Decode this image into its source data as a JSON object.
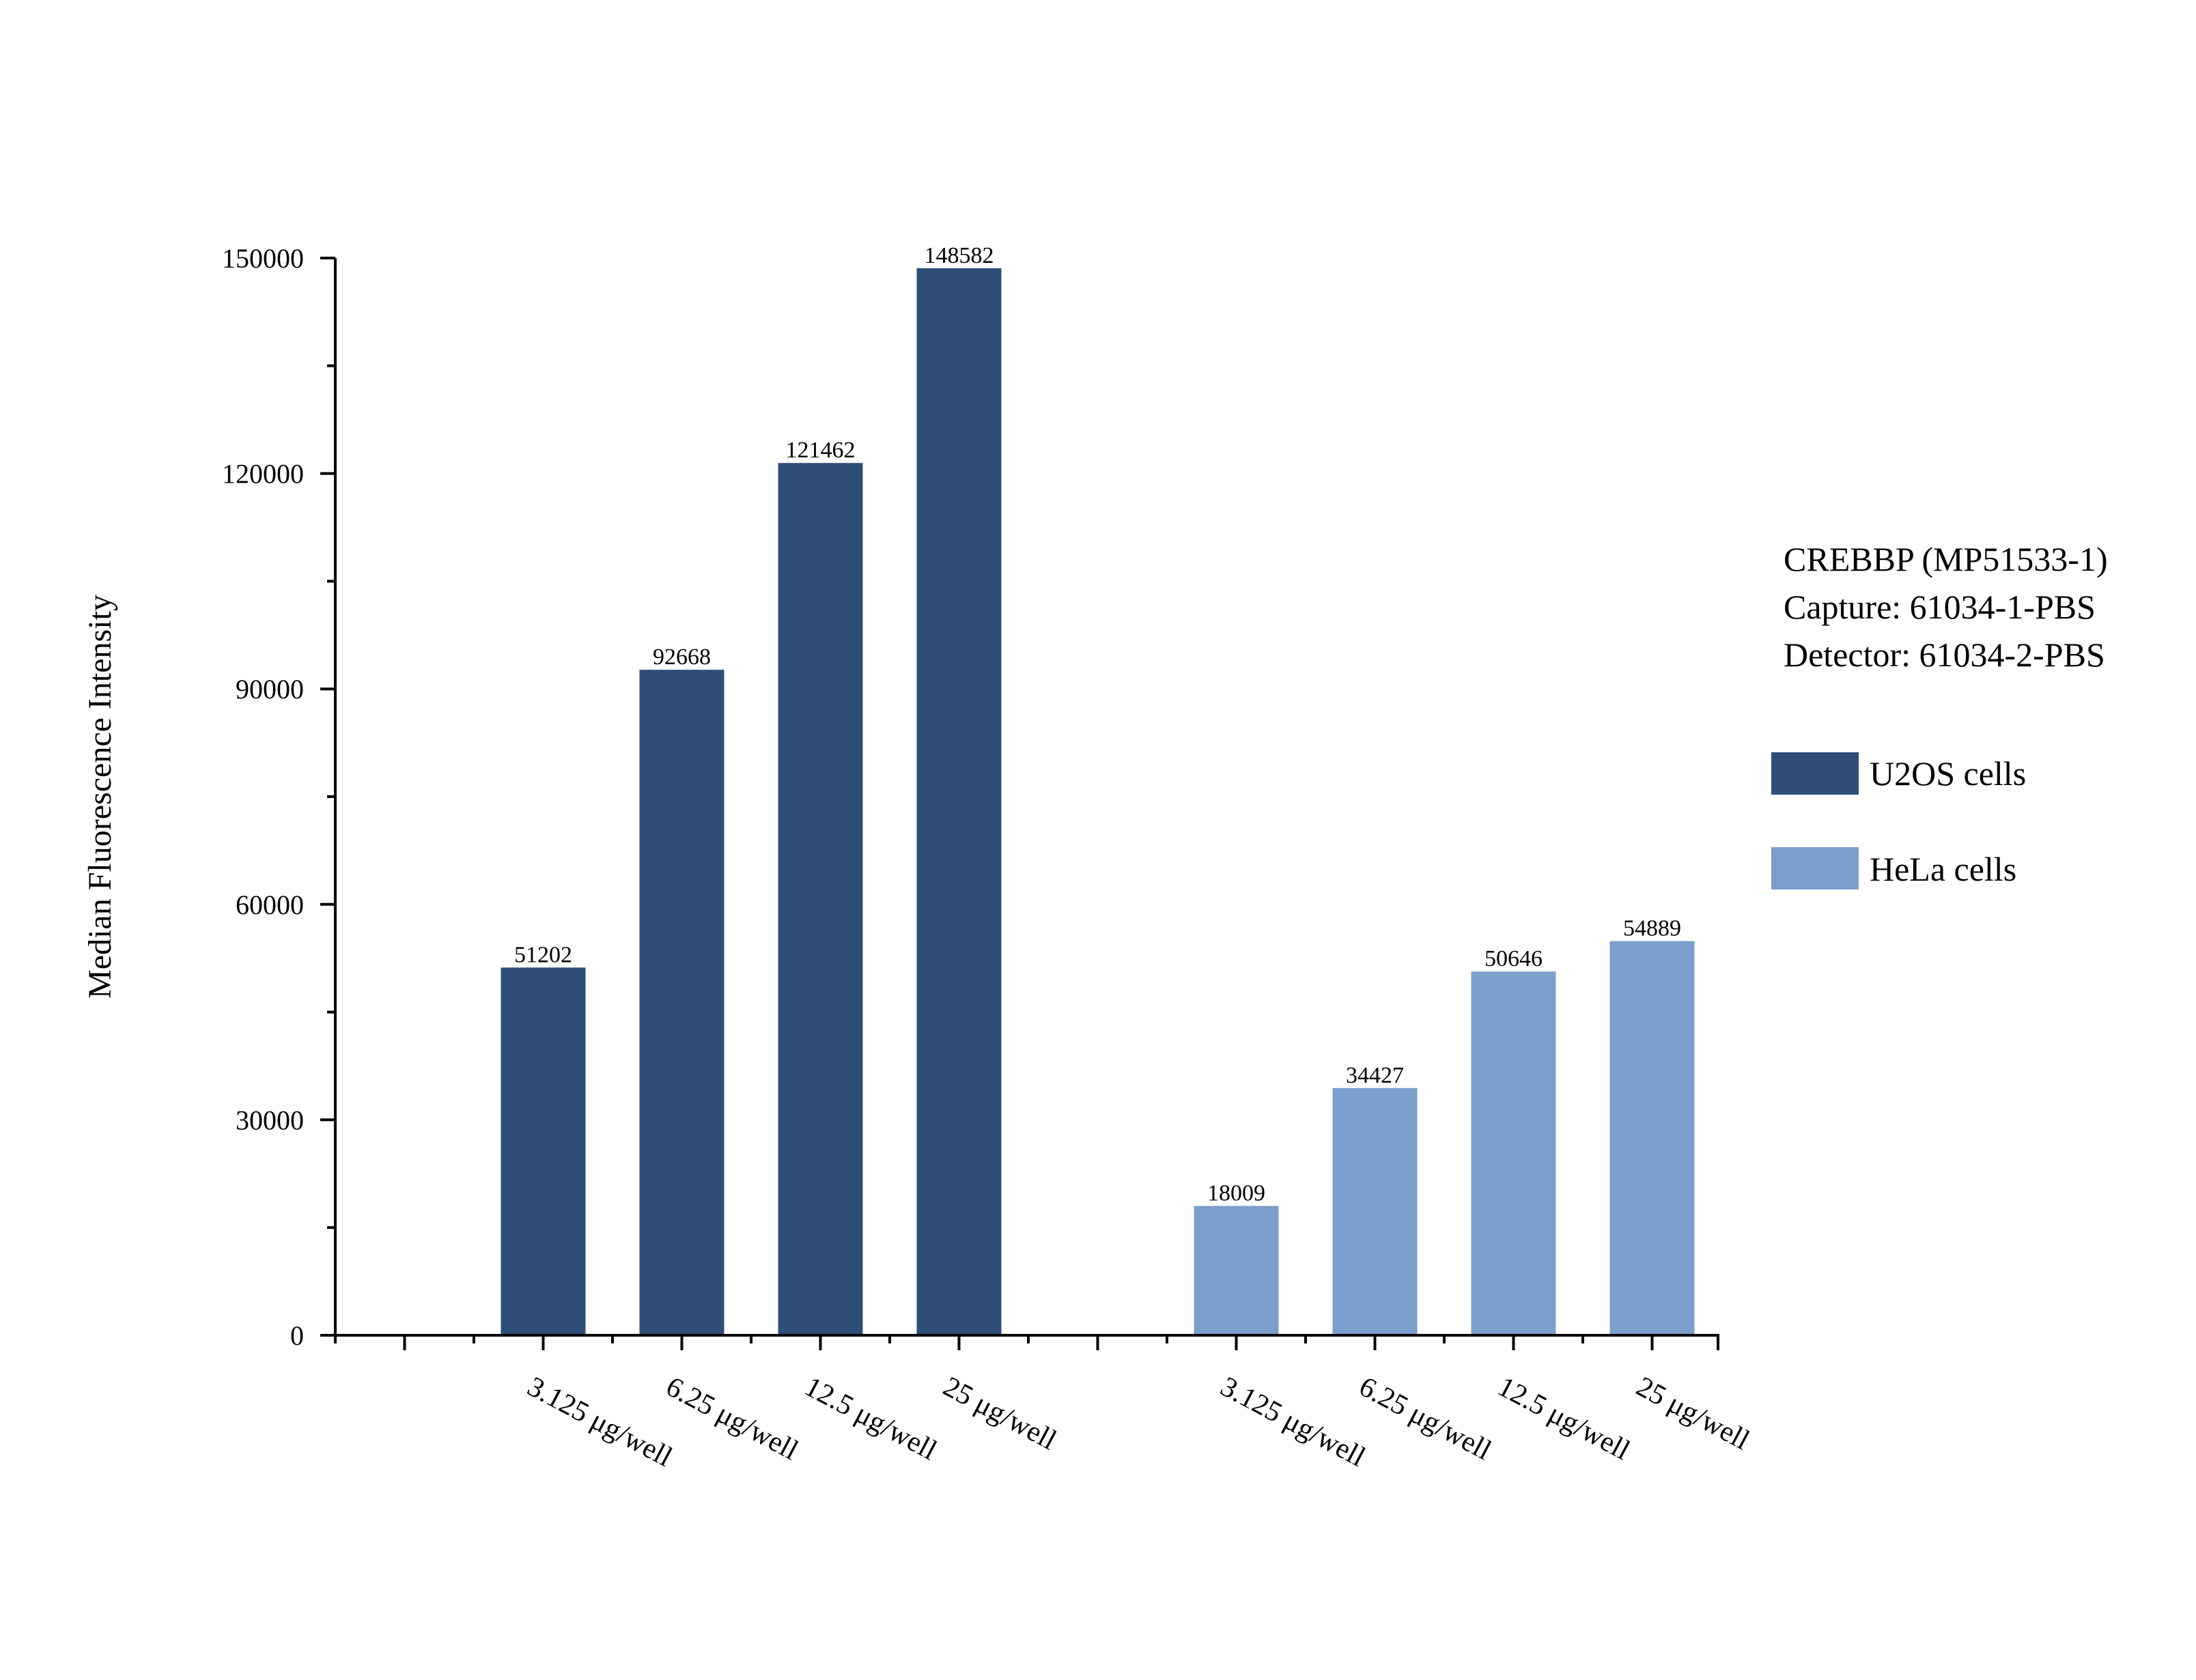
{
  "chart_data": {
    "type": "bar",
    "title": "",
    "xlabel": "",
    "ylabel": "Median Fluorescence Intensity",
    "ylim": [
      0,
      150000
    ],
    "yticks": [
      0,
      30000,
      60000,
      90000,
      120000,
      150000
    ],
    "grid": false,
    "legend_position": "right",
    "groups": [
      {
        "name": "U2OS cells",
        "color": "#2e4e78",
        "categories": [
          "3.125 μg/well",
          "6.25 μg/well",
          "12.5 μg/well",
          "25 μg/well"
        ],
        "values": [
          51202,
          92668,
          121462,
          148582
        ]
      },
      {
        "name": "HeLa cells",
        "color": "#7b9fcc",
        "categories": [
          "3.125 μg/well",
          "6.25 μg/well",
          "12.5 μg/well",
          "25 μg/well"
        ],
        "values": [
          18009,
          34427,
          50646,
          54889
        ]
      }
    ]
  },
  "info": {
    "lines": [
      "CREBBP (MP51533-1)",
      "Capture: 61034-1-PBS",
      "Detector: 61034-2-PBS"
    ]
  },
  "legend": [
    {
      "label": "U2OS cells",
      "color": "#2e4e78"
    },
    {
      "label": "HeLa cells",
      "color": "#7b9fcc"
    }
  ]
}
